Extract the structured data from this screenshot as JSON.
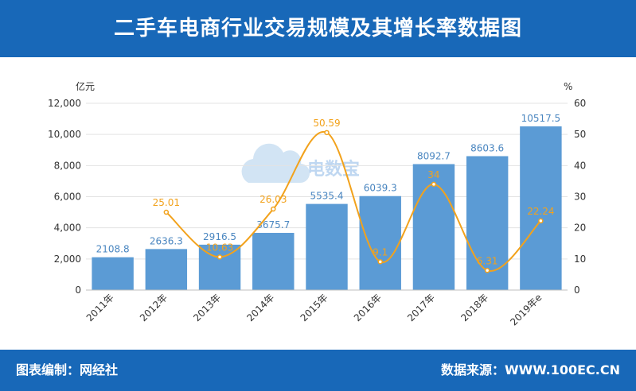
{
  "header": {
    "title": "二手车电商行业交易规模及其增长率数据图"
  },
  "footer": {
    "left": "图表编制：网经社",
    "right": "数据来源：WWW.100EC.CN"
  },
  "watermark": {
    "name": "电数宝"
  },
  "colors": {
    "header_bg": "#1868b8",
    "bar": "#5b9bd5",
    "line": "#f2a21c"
  },
  "chart_data": {
    "type": "bar",
    "title": "二手车电商行业交易规模及其增长率数据图",
    "categories": [
      "2011年",
      "2012年",
      "2013年",
      "2014年",
      "2015年",
      "2016年",
      "2017年",
      "2018年",
      "2019年e"
    ],
    "left_unit": "亿元",
    "right_unit": "%",
    "ylim": [
      0,
      12000
    ],
    "yticks": [
      "0",
      "2,000",
      "4,000",
      "6,000",
      "8,000",
      "10,000",
      "12,000"
    ],
    "y2lim": [
      0,
      60
    ],
    "y2ticks": [
      "0",
      "10",
      "20",
      "30",
      "40",
      "50",
      "60"
    ],
    "grid": true,
    "series": [
      {
        "type": "bar",
        "axis": "left",
        "values": [
          2108.8,
          2636.3,
          2916.5,
          3675.7,
          5535.4,
          6039.3,
          8092.7,
          8603.6,
          10517.5
        ],
        "labels": [
          "2108.8",
          "2636.3",
          "2916.5",
          "3675.7",
          "5535.4",
          "6039.3",
          "8092.7",
          "8603.6",
          "10517.5"
        ]
      },
      {
        "type": "line",
        "axis": "right",
        "smooth": true,
        "values": [
          null,
          25.01,
          10.63,
          26.03,
          50.59,
          9.1,
          34,
          6.31,
          22.24
        ],
        "labels": [
          "",
          "25.01",
          "10.63",
          "26.03",
          "50.59",
          "9.1",
          "34",
          "6.31",
          "22.24"
        ]
      }
    ]
  }
}
